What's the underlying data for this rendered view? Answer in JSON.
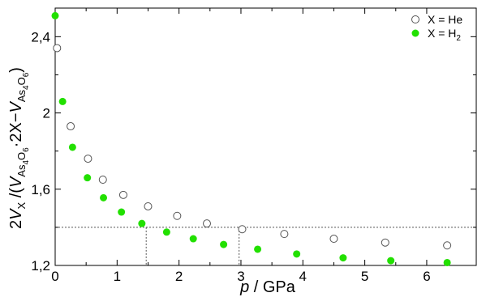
{
  "chart_data": {
    "type": "scatter",
    "xlabel": {
      "italic": "p",
      "rest": " / GPa"
    },
    "ylabel": "2V_X /(V_As4O6·2X − V_As4O6)",
    "xlim": [
      0,
      6.8
    ],
    "ylim": [
      1.2,
      2.55
    ],
    "xticks": [
      0,
      1,
      2,
      3,
      4,
      5,
      6
    ],
    "xtick_labels": [
      "0",
      "1",
      "2",
      "3",
      "4",
      "5",
      "6"
    ],
    "yticks": [
      1.2,
      1.6,
      2.0,
      2.4
    ],
    "ytick_labels": [
      "1,2",
      "1,6",
      "2",
      "2,4"
    ],
    "legend_placement": "top-right",
    "reference_line": {
      "y": 1.4,
      "x_markers": [
        1.47,
        2.97
      ]
    },
    "series": [
      {
        "name": "X = He",
        "marker": "open-circle",
        "color": "#555555",
        "x": [
          0.03,
          0.25,
          0.53,
          0.77,
          1.1,
          1.5,
          1.97,
          2.45,
          3.02,
          3.7,
          4.5,
          5.33,
          6.33
        ],
        "y": [
          2.34,
          1.93,
          1.76,
          1.65,
          1.57,
          1.51,
          1.46,
          1.42,
          1.39,
          1.365,
          1.34,
          1.32,
          1.305
        ]
      },
      {
        "name": "X = H2",
        "marker": "filled-circle",
        "color": "#22e000",
        "x": [
          0.0,
          0.12,
          0.28,
          0.52,
          0.78,
          1.07,
          1.4,
          1.8,
          2.23,
          2.72,
          3.27,
          3.9,
          4.65,
          5.42,
          6.33
        ],
        "y": [
          2.51,
          2.06,
          1.82,
          1.66,
          1.555,
          1.48,
          1.42,
          1.375,
          1.34,
          1.31,
          1.285,
          1.26,
          1.24,
          1.225,
          1.215
        ]
      }
    ]
  }
}
